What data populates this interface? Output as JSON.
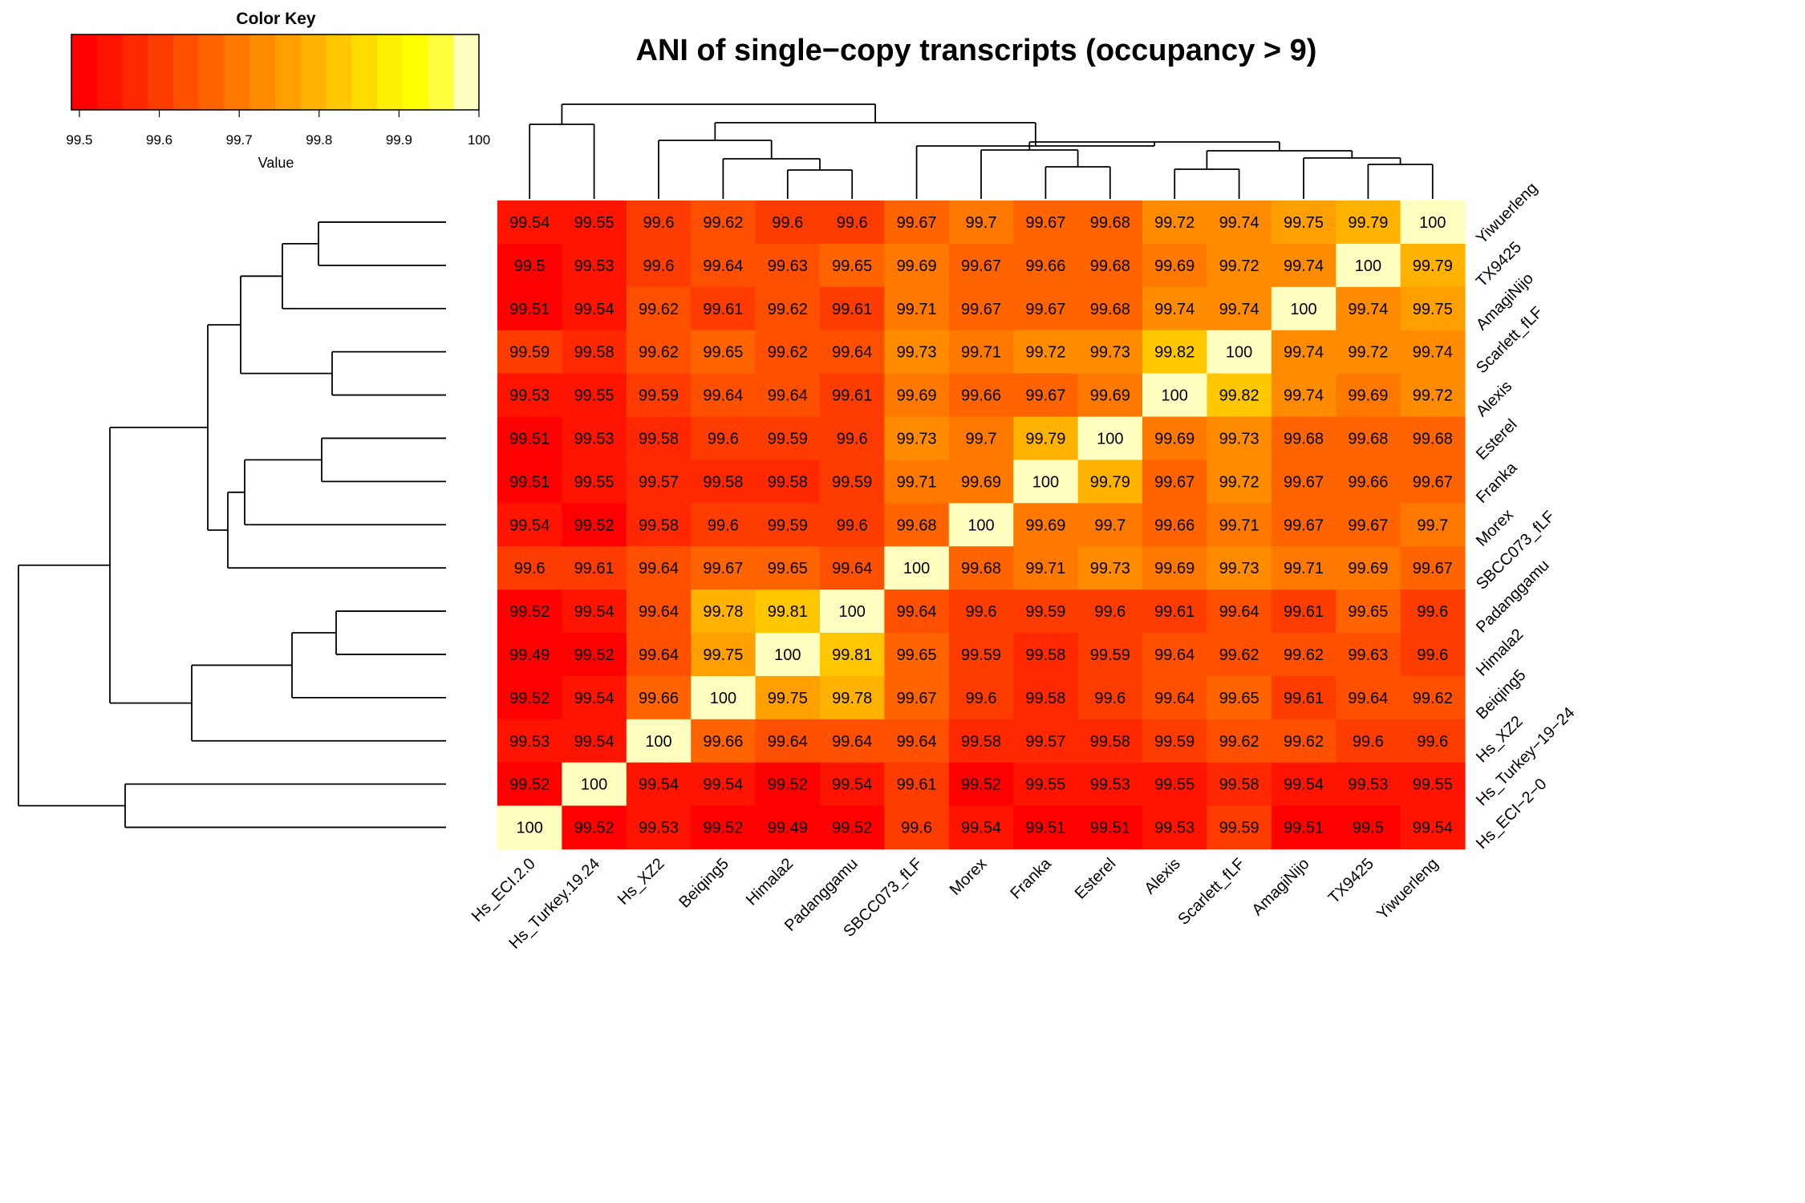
{
  "chart_data": {
    "type": "heatmap",
    "title": "ANI of single−copy transcripts (occupancy > 9)",
    "col_labels": [
      "Hs_ECI.2.0",
      "Hs_Turkey.19.24",
      "Hs_XZ2",
      "Beiqing5",
      "Himala2",
      "Padanggamu",
      "SBCC073_fLF",
      "Morex",
      "Franka",
      "Esterel",
      "Alexis",
      "Scarlett_fLF",
      "AmagiNijo",
      "TX9425",
      "Yiwuerleng"
    ],
    "row_labels": [
      "Yiwuerleng",
      "TX9425",
      "AmagiNijo",
      "Scarlett_fLF",
      "Alexis",
      "Esterel",
      "Franka",
      "Morex",
      "SBCC073_fLF",
      "Padanggamu",
      "Himala2",
      "Beiqing5",
      "Hs_XZ2",
      "Hs_Turkey−19−24",
      "Hs_ECI−2−0"
    ],
    "values": [
      [
        99.54,
        99.55,
        99.6,
        99.62,
        99.6,
        99.6,
        99.67,
        99.7,
        99.67,
        99.68,
        99.72,
        99.74,
        99.75,
        99.79,
        100
      ],
      [
        99.5,
        99.53,
        99.6,
        99.64,
        99.63,
        99.65,
        99.69,
        99.67,
        99.66,
        99.68,
        99.69,
        99.72,
        99.74,
        100,
        99.79
      ],
      [
        99.51,
        99.54,
        99.62,
        99.61,
        99.62,
        99.61,
        99.71,
        99.67,
        99.67,
        99.68,
        99.74,
        99.74,
        100,
        99.74,
        99.75
      ],
      [
        99.59,
        99.58,
        99.62,
        99.65,
        99.62,
        99.64,
        99.73,
        99.71,
        99.72,
        99.73,
        99.82,
        100,
        99.74,
        99.72,
        99.74
      ],
      [
        99.53,
        99.55,
        99.59,
        99.64,
        99.64,
        99.61,
        99.69,
        99.66,
        99.67,
        99.69,
        100,
        99.82,
        99.74,
        99.69,
        99.72
      ],
      [
        99.51,
        99.53,
        99.58,
        99.6,
        99.59,
        99.6,
        99.73,
        99.7,
        99.79,
        100,
        99.69,
        99.73,
        99.68,
        99.68,
        99.68
      ],
      [
        99.51,
        99.55,
        99.57,
        99.58,
        99.58,
        99.59,
        99.71,
        99.69,
        100,
        99.79,
        99.67,
        99.72,
        99.67,
        99.66,
        99.67
      ],
      [
        99.54,
        99.52,
        99.58,
        99.6,
        99.59,
        99.6,
        99.68,
        100,
        99.69,
        99.7,
        99.66,
        99.71,
        99.67,
        99.67,
        99.7
      ],
      [
        99.6,
        99.61,
        99.64,
        99.67,
        99.65,
        99.64,
        100,
        99.68,
        99.71,
        99.73,
        99.69,
        99.73,
        99.71,
        99.69,
        99.67
      ],
      [
        99.52,
        99.54,
        99.64,
        99.78,
        99.81,
        100,
        99.64,
        99.6,
        99.59,
        99.6,
        99.61,
        99.64,
        99.61,
        99.65,
        99.6
      ],
      [
        99.49,
        99.52,
        99.64,
        99.75,
        100,
        99.81,
        99.65,
        99.59,
        99.58,
        99.59,
        99.64,
        99.62,
        99.62,
        99.63,
        99.6
      ],
      [
        99.52,
        99.54,
        99.66,
        100,
        99.75,
        99.78,
        99.67,
        99.6,
        99.58,
        99.6,
        99.64,
        99.65,
        99.61,
        99.64,
        99.62
      ],
      [
        99.53,
        99.54,
        100,
        99.66,
        99.64,
        99.64,
        99.64,
        99.58,
        99.57,
        99.58,
        99.59,
        99.62,
        99.62,
        99.6,
        99.6
      ],
      [
        99.52,
        100,
        99.54,
        99.54,
        99.52,
        99.54,
        99.61,
        99.52,
        99.55,
        99.53,
        99.55,
        99.58,
        99.54,
        99.53,
        99.55
      ],
      [
        100,
        99.52,
        99.53,
        99.52,
        99.49,
        99.52,
        99.6,
        99.54,
        99.51,
        99.51,
        99.53,
        99.59,
        99.51,
        99.5,
        99.54
      ]
    ],
    "color_key": {
      "title": "Color Key",
      "xlabel": "Value",
      "range": [
        99.49,
        100
      ],
      "ticks": [
        "99.5",
        "99.6",
        "99.7",
        "99.8",
        "99.9",
        "100"
      ],
      "tick_values": [
        99.5,
        99.6,
        99.7,
        99.8,
        99.9,
        100
      ],
      "colors": [
        "#FF0000",
        "#FF1400",
        "#FF2800",
        "#FF3C00",
        "#FF5000",
        "#FF6400",
        "#FF7800",
        "#FF8B00",
        "#FF9F00",
        "#FFB300",
        "#FFC700",
        "#FFDB00",
        "#FFEF00",
        "#FFFF00",
        "#FFFF40",
        "#FFFFBF"
      ]
    },
    "col_dendrogram": {
      "note_order": "leaves in column order",
      "merges": [
        [
          10,
          11,
          1
        ],
        [
          14,
          15,
          1
        ],
        [
          4,
          5,
          1
        ],
        [
          13,
          15,
          2
        ],
        [
          8,
          9,
          2
        ],
        [
          3,
          4,
          2
        ],
        [
          11,
          13,
          3
        ],
        [
          7,
          8,
          3
        ],
        [
          1,
          2,
          4
        ],
        [
          8,
          11,
          4
        ],
        [
          3,
          5,
          5
        ],
        [
          7,
          9,
          5
        ],
        [
          3,
          8,
          6
        ],
        [
          1,
          7,
          7
        ]
      ]
    },
    "row_dendrogram": {
      "note_order": "leaves in row order (top to bottom)"
    }
  }
}
